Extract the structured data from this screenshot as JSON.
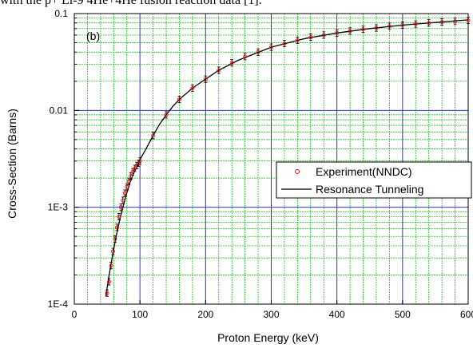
{
  "caption": "with the p+ Li-9 4He+4He fusion reaction data [1].",
  "chart_data": {
    "type": "scatter",
    "panel_label": "(b)",
    "xlabel": "Proton Energy (keV)",
    "ylabel": "Cross-Section (Barns)",
    "xlim": [
      0,
      600
    ],
    "ylim": [
      0.0001,
      0.1
    ],
    "y_scale": "log",
    "x_ticks": [
      "0",
      "100",
      "200",
      "300",
      "400",
      "500",
      "600"
    ],
    "y_ticks": [
      "1E-4",
      "1E-3",
      "0.01",
      "0.1"
    ],
    "grid": true,
    "legend_position": "right-middle",
    "series": [
      {
        "name": "Experiment(NNDC)",
        "kind": "markers",
        "color": "#ff0000",
        "x": [
          50,
          53,
          56,
          59,
          62,
          65,
          68,
          71,
          74,
          77,
          80,
          83,
          86,
          89,
          92,
          95,
          98,
          100,
          120,
          140,
          160,
          180,
          200,
          220,
          240,
          260,
          280,
          300,
          320,
          340,
          360,
          380,
          400,
          420,
          440,
          460,
          480,
          500,
          520,
          540,
          560,
          580,
          600
        ],
        "y": [
          0.00013,
          0.00017,
          0.00025,
          0.00035,
          0.00047,
          0.00062,
          0.0008,
          0.001,
          0.00118,
          0.0014,
          0.00162,
          0.00185,
          0.0021,
          0.00232,
          0.00252,
          0.0027,
          0.00285,
          0.003,
          0.0055,
          0.009,
          0.013,
          0.017,
          0.021,
          0.026,
          0.031,
          0.036,
          0.04,
          0.045,
          0.049,
          0.053,
          0.057,
          0.06,
          0.063,
          0.066,
          0.069,
          0.071,
          0.074,
          0.076,
          0.078,
          0.08,
          0.082,
          0.083,
          0.085
        ]
      },
      {
        "name": "Resonance Tunneling",
        "kind": "line",
        "color": "#000000",
        "x": [
          48,
          52,
          56,
          60,
          65,
          70,
          75,
          80,
          85,
          90,
          95,
          100,
          110,
          120,
          130,
          140,
          150,
          160,
          180,
          200,
          220,
          250,
          300,
          350,
          400,
          450,
          500,
          550,
          600
        ],
        "y": [
          0.00012,
          0.00018,
          0.00026,
          0.00037,
          0.00055,
          0.00078,
          0.00105,
          0.0014,
          0.0018,
          0.0022,
          0.0026,
          0.0031,
          0.0041,
          0.0055,
          0.0072,
          0.009,
          0.011,
          0.013,
          0.017,
          0.021,
          0.026,
          0.033,
          0.045,
          0.055,
          0.063,
          0.07,
          0.076,
          0.081,
          0.086
        ]
      }
    ]
  },
  "colors": {
    "major_grid": "#3333cc",
    "minor_grid": "#00bb00",
    "marker": "#ff0000",
    "line": "#000000"
  }
}
